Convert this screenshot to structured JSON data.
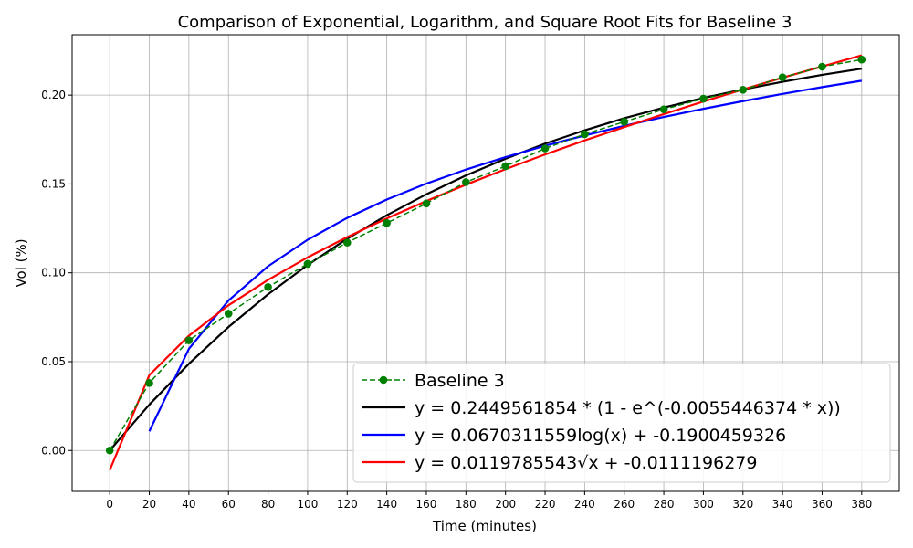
{
  "chart_data": {
    "type": "line",
    "title": "Comparison of Exponential, Logarithm, and Square Root Fits for Baseline 3",
    "xlabel": "Time (minutes)",
    "ylabel": "Vol (%)",
    "xlim": [
      -19,
      399
    ],
    "ylim": [
      -0.023,
      0.234
    ],
    "xticks": [
      0,
      20,
      40,
      60,
      80,
      100,
      120,
      140,
      160,
      180,
      200,
      220,
      240,
      260,
      280,
      300,
      320,
      340,
      360,
      380
    ],
    "yticks": [
      0.0,
      0.05,
      0.1,
      0.15,
      0.2
    ],
    "ytick_labels": [
      "0.00",
      "0.05",
      "0.10",
      "0.15",
      "0.20"
    ],
    "grid": true,
    "legend_position": "lower-right",
    "series": [
      {
        "name": "Baseline 3",
        "color": "#008000",
        "style": "dashed-markers",
        "x": [
          0,
          20,
          40,
          60,
          80,
          100,
          120,
          140,
          160,
          180,
          200,
          220,
          240,
          260,
          280,
          300,
          320,
          340,
          360,
          380
        ],
        "y": [
          0.0,
          0.038,
          0.062,
          0.077,
          0.092,
          0.105,
          0.117,
          0.128,
          0.139,
          0.151,
          0.16,
          0.17,
          0.178,
          0.185,
          0.192,
          0.198,
          0.203,
          0.21,
          0.216,
          0.22
        ]
      },
      {
        "name": "y = 0.2449561854 * (1 - e^(-0.0055446374 * x))",
        "color": "#000000",
        "style": "solid",
        "x": [
          0,
          20,
          40,
          60,
          80,
          100,
          120,
          140,
          160,
          180,
          200,
          220,
          240,
          260,
          280,
          300,
          320,
          340,
          360,
          380
        ],
        "y": [
          0.0,
          0.0258,
          0.0488,
          0.0695,
          0.0879,
          0.1044,
          0.1192,
          0.1324,
          0.1442,
          0.1548,
          0.1642,
          0.1727,
          0.1802,
          0.187,
          0.193,
          0.1984,
          0.2032,
          0.2075,
          0.2114,
          0.2149
        ]
      },
      {
        "name": "y = 0.0670311559log(x) + -0.1900459326",
        "color": "#0000ff",
        "style": "solid",
        "x": [
          20,
          40,
          60,
          80,
          100,
          120,
          140,
          160,
          180,
          200,
          220,
          240,
          260,
          280,
          300,
          320,
          340,
          360,
          380
        ],
        "y": [
          0.0108,
          0.0572,
          0.0844,
          0.1037,
          0.1186,
          0.1309,
          0.1412,
          0.1502,
          0.1581,
          0.1651,
          0.1715,
          0.1773,
          0.1827,
          0.1877,
          0.1923,
          0.1966,
          0.2007,
          0.2045,
          0.2081
        ]
      },
      {
        "name": "y = 0.0119785543√x + -0.0111196279",
        "color": "#ff0000",
        "style": "solid",
        "x": [
          0,
          20,
          40,
          60,
          80,
          100,
          120,
          140,
          160,
          180,
          200,
          220,
          240,
          260,
          280,
          300,
          320,
          340,
          360,
          380
        ],
        "y": [
          -0.0111,
          0.0424,
          0.0646,
          0.0817,
          0.096,
          0.1087,
          0.1201,
          0.1306,
          0.1404,
          0.1496,
          0.1583,
          0.1666,
          0.1745,
          0.182,
          0.1893,
          0.1964,
          0.2032,
          0.2098,
          0.2161,
          0.2224
        ]
      }
    ]
  }
}
